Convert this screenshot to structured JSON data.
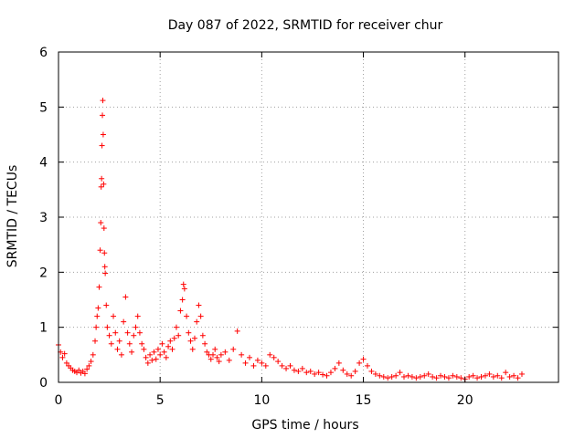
{
  "chart_data": {
    "type": "scatter",
    "title": "Day 087 of 2022, SRMTID for receiver chur",
    "xlabel": "GPS time / hours",
    "ylabel": "SRMTID / TECUs",
    "xlim": [
      0,
      24.6
    ],
    "ylim": [
      0,
      6
    ],
    "xticks": [
      0,
      5,
      10,
      15,
      20
    ],
    "yticks": [
      0,
      1,
      2,
      3,
      4,
      5,
      6
    ],
    "grid": true,
    "marker": "+",
    "series": [
      {
        "name": "SRMTID",
        "color": "#ff0000",
        "points": [
          [
            0.0,
            0.68
          ],
          [
            0.1,
            0.55
          ],
          [
            0.2,
            0.45
          ],
          [
            0.3,
            0.52
          ],
          [
            0.4,
            0.35
          ],
          [
            0.5,
            0.3
          ],
          [
            0.6,
            0.26
          ],
          [
            0.7,
            0.22
          ],
          [
            0.8,
            0.2
          ],
          [
            0.9,
            0.18
          ],
          [
            1.0,
            0.22
          ],
          [
            1.1,
            0.17
          ],
          [
            1.2,
            0.2
          ],
          [
            1.3,
            0.16
          ],
          [
            1.4,
            0.24
          ],
          [
            1.5,
            0.3
          ],
          [
            1.6,
            0.38
          ],
          [
            1.7,
            0.5
          ],
          [
            1.8,
            0.75
          ],
          [
            1.85,
            1.0
          ],
          [
            1.9,
            1.2
          ],
          [
            1.95,
            1.35
          ],
          [
            2.0,
            1.73
          ],
          [
            2.05,
            2.4
          ],
          [
            2.08,
            2.9
          ],
          [
            2.1,
            3.55
          ],
          [
            2.12,
            3.7
          ],
          [
            2.14,
            4.3
          ],
          [
            2.16,
            4.85
          ],
          [
            2.18,
            5.12
          ],
          [
            2.2,
            4.5
          ],
          [
            2.22,
            3.6
          ],
          [
            2.24,
            2.8
          ],
          [
            2.26,
            2.35
          ],
          [
            2.28,
            2.1
          ],
          [
            2.3,
            1.98
          ],
          [
            2.35,
            1.4
          ],
          [
            2.4,
            1.0
          ],
          [
            2.5,
            0.85
          ],
          [
            2.6,
            0.7
          ],
          [
            2.7,
            1.2
          ],
          [
            2.8,
            0.9
          ],
          [
            2.9,
            0.6
          ],
          [
            3.0,
            0.75
          ],
          [
            3.1,
            0.5
          ],
          [
            3.2,
            1.1
          ],
          [
            3.3,
            1.55
          ],
          [
            3.4,
            0.9
          ],
          [
            3.5,
            0.7
          ],
          [
            3.6,
            0.55
          ],
          [
            3.7,
            0.85
          ],
          [
            3.8,
            1.0
          ],
          [
            3.9,
            1.2
          ],
          [
            4.0,
            0.9
          ],
          [
            4.1,
            0.7
          ],
          [
            4.2,
            0.6
          ],
          [
            4.3,
            0.45
          ],
          [
            4.4,
            0.35
          ],
          [
            4.5,
            0.5
          ],
          [
            4.6,
            0.4
          ],
          [
            4.7,
            0.55
          ],
          [
            4.8,
            0.42
          ],
          [
            4.9,
            0.6
          ],
          [
            5.0,
            0.5
          ],
          [
            5.1,
            0.7
          ],
          [
            5.2,
            0.55
          ],
          [
            5.3,
            0.45
          ],
          [
            5.4,
            0.65
          ],
          [
            5.5,
            0.75
          ],
          [
            5.6,
            0.6
          ],
          [
            5.7,
            0.8
          ],
          [
            5.8,
            1.0
          ],
          [
            5.9,
            0.85
          ],
          [
            6.0,
            1.3
          ],
          [
            6.1,
            1.5
          ],
          [
            6.15,
            1.78
          ],
          [
            6.2,
            1.7
          ],
          [
            6.3,
            1.2
          ],
          [
            6.4,
            0.9
          ],
          [
            6.5,
            0.75
          ],
          [
            6.6,
            0.6
          ],
          [
            6.7,
            0.8
          ],
          [
            6.8,
            1.1
          ],
          [
            6.9,
            1.4
          ],
          [
            7.0,
            1.2
          ],
          [
            7.1,
            0.85
          ],
          [
            7.2,
            0.7
          ],
          [
            7.3,
            0.55
          ],
          [
            7.4,
            0.5
          ],
          [
            7.5,
            0.42
          ],
          [
            7.6,
            0.5
          ],
          [
            7.7,
            0.6
          ],
          [
            7.8,
            0.45
          ],
          [
            7.9,
            0.38
          ],
          [
            8.0,
            0.5
          ],
          [
            8.2,
            0.55
          ],
          [
            8.4,
            0.4
          ],
          [
            8.6,
            0.6
          ],
          [
            8.8,
            0.93
          ],
          [
            9.0,
            0.5
          ],
          [
            9.2,
            0.35
          ],
          [
            9.4,
            0.45
          ],
          [
            9.6,
            0.3
          ],
          [
            9.8,
            0.4
          ],
          [
            10.0,
            0.35
          ],
          [
            10.2,
            0.3
          ],
          [
            10.4,
            0.5
          ],
          [
            10.6,
            0.45
          ],
          [
            10.8,
            0.38
          ],
          [
            11.0,
            0.3
          ],
          [
            11.2,
            0.25
          ],
          [
            11.4,
            0.3
          ],
          [
            11.6,
            0.22
          ],
          [
            11.8,
            0.2
          ],
          [
            12.0,
            0.25
          ],
          [
            12.2,
            0.18
          ],
          [
            12.4,
            0.2
          ],
          [
            12.6,
            0.15
          ],
          [
            12.8,
            0.18
          ],
          [
            13.0,
            0.14
          ],
          [
            13.2,
            0.12
          ],
          [
            13.4,
            0.18
          ],
          [
            13.6,
            0.25
          ],
          [
            13.8,
            0.35
          ],
          [
            14.0,
            0.22
          ],
          [
            14.2,
            0.15
          ],
          [
            14.4,
            0.12
          ],
          [
            14.6,
            0.2
          ],
          [
            14.8,
            0.35
          ],
          [
            15.0,
            0.42
          ],
          [
            15.2,
            0.3
          ],
          [
            15.4,
            0.2
          ],
          [
            15.6,
            0.15
          ],
          [
            15.8,
            0.12
          ],
          [
            16.0,
            0.1
          ],
          [
            16.2,
            0.08
          ],
          [
            16.4,
            0.1
          ],
          [
            16.6,
            0.12
          ],
          [
            16.8,
            0.18
          ],
          [
            17.0,
            0.1
          ],
          [
            17.2,
            0.12
          ],
          [
            17.4,
            0.1
          ],
          [
            17.6,
            0.08
          ],
          [
            17.8,
            0.1
          ],
          [
            18.0,
            0.12
          ],
          [
            18.2,
            0.15
          ],
          [
            18.4,
            0.1
          ],
          [
            18.6,
            0.08
          ],
          [
            18.8,
            0.12
          ],
          [
            19.0,
            0.1
          ],
          [
            19.2,
            0.08
          ],
          [
            19.4,
            0.12
          ],
          [
            19.6,
            0.1
          ],
          [
            19.8,
            0.08
          ],
          [
            20.0,
            0.06
          ],
          [
            20.2,
            0.1
          ],
          [
            20.4,
            0.12
          ],
          [
            20.6,
            0.08
          ],
          [
            20.8,
            0.1
          ],
          [
            21.0,
            0.12
          ],
          [
            21.2,
            0.15
          ],
          [
            21.4,
            0.1
          ],
          [
            21.6,
            0.12
          ],
          [
            21.8,
            0.08
          ],
          [
            22.0,
            0.18
          ],
          [
            22.2,
            0.1
          ],
          [
            22.4,
            0.12
          ],
          [
            22.6,
            0.08
          ],
          [
            22.8,
            0.15
          ]
        ]
      }
    ]
  }
}
